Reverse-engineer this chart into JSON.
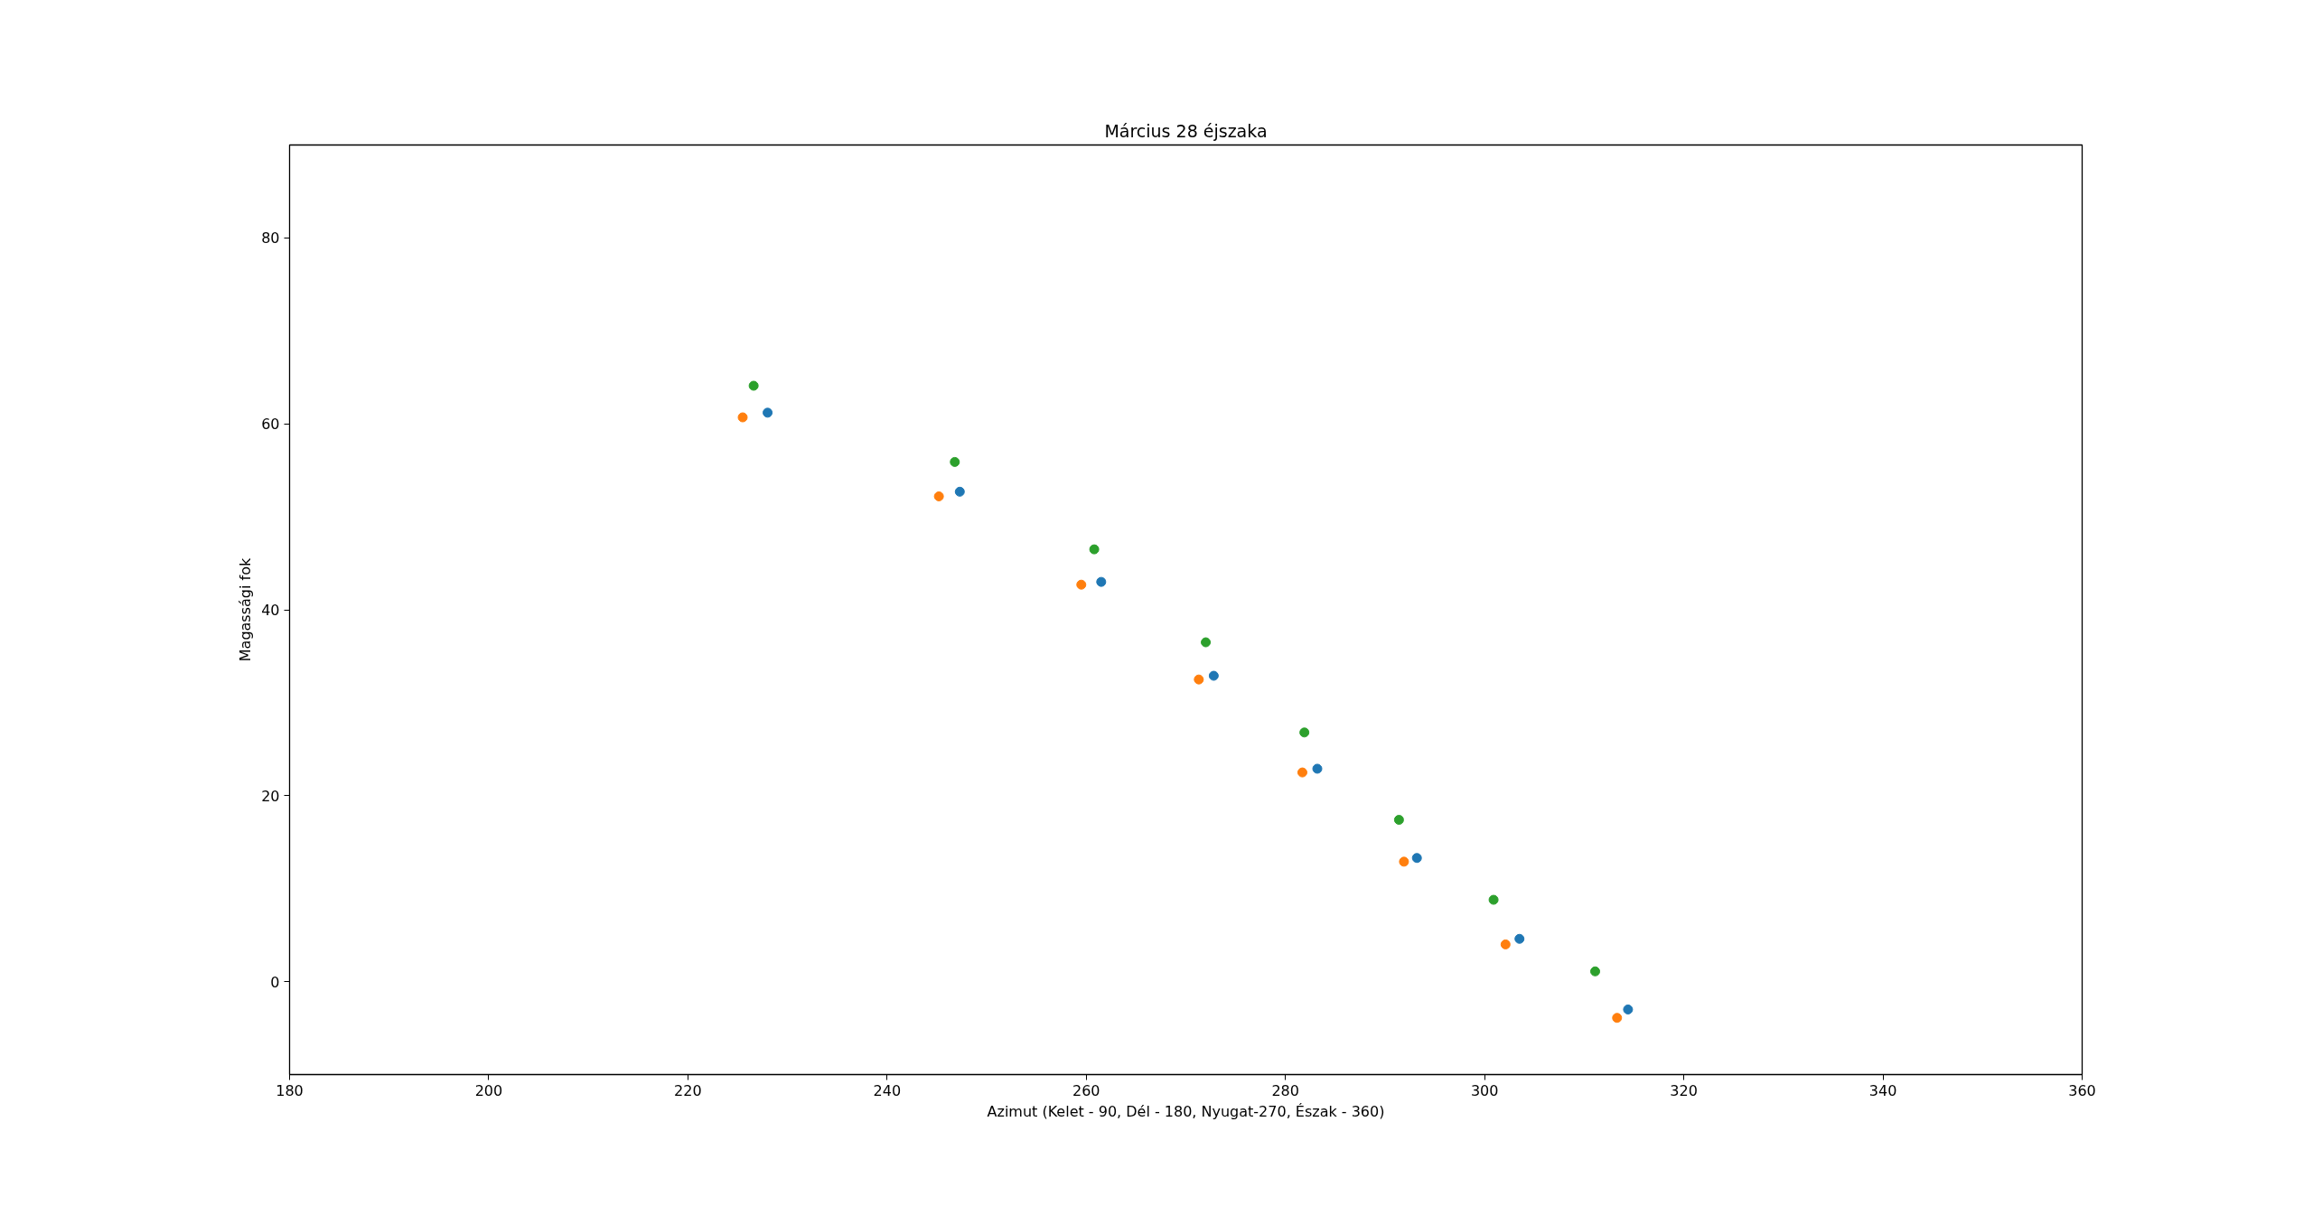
{
  "chart_data": {
    "type": "scatter",
    "title": "Március 28 éjszaka",
    "xlabel": "Azimut (Kelet - 90, Dél - 180, Nyugat-270, Észak - 360)",
    "ylabel": "Magassági fok",
    "series": [
      {
        "color": "#1f77b4",
        "x": [
          228.0,
          247.3,
          261.5,
          272.8,
          283.2,
          293.2,
          303.5,
          314.4
        ],
        "values": [
          61.2,
          52.7,
          43.0,
          32.9,
          22.9,
          13.3,
          4.6,
          -3.0
        ]
      },
      {
        "color": "#ff7f0e",
        "x": [
          225.5,
          245.2,
          259.5,
          271.3,
          281.7,
          291.9,
          302.1,
          313.3
        ],
        "values": [
          60.7,
          52.2,
          42.7,
          32.5,
          22.5,
          12.9,
          4.0,
          -3.9
        ]
      },
      {
        "color": "#2ca02c",
        "x": [
          226.6,
          246.8,
          260.8,
          272.0,
          281.9,
          291.4,
          300.9,
          311.1
        ],
        "values": [
          64.1,
          55.9,
          46.5,
          36.5,
          26.8,
          17.4,
          8.8,
          1.1
        ]
      }
    ],
    "xlim": [
      180,
      360
    ],
    "xticks": [
      180,
      200,
      220,
      240,
      260,
      280,
      300,
      320,
      340,
      360
    ],
    "ylim": [
      -10,
      90
    ],
    "yticks": [
      0,
      20,
      40,
      60,
      80
    ],
    "grid": false,
    "marker": "circle"
  }
}
